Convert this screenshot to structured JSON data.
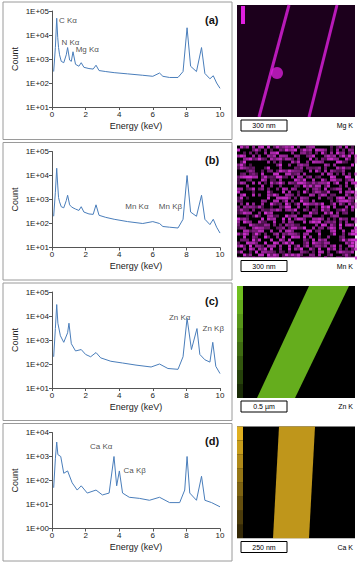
{
  "chart_data": [
    {
      "type": "line",
      "title": "(a)",
      "x_label": "Energy (keV)",
      "y_label": "Count",
      "color": "#4a7ebb",
      "log": "y",
      "grid": false,
      "xlim": [
        0,
        10
      ],
      "xticks": [
        0,
        2,
        4,
        6,
        8,
        10
      ],
      "ylim": [
        10,
        100000
      ],
      "yticks": [
        {
          "value": 10,
          "label": "1E+01"
        },
        {
          "value": 100,
          "label": "1E+02"
        },
        {
          "value": 1000,
          "label": "1E+03"
        },
        {
          "value": 10000,
          "label": "1E+04"
        },
        {
          "value": 100000,
          "label": "1E+05"
        }
      ],
      "x": [
        0.1,
        0.2,
        0.28,
        0.34,
        0.39,
        0.45,
        0.55,
        0.7,
        0.85,
        0.93,
        1.05,
        1.15,
        1.25,
        1.4,
        1.6,
        1.74,
        1.9,
        2.2,
        2.45,
        2.62,
        2.8,
        3.2,
        3.7,
        4.5,
        5.4,
        6.0,
        6.4,
        6.6,
        7.0,
        7.5,
        7.8,
        8.04,
        8.25,
        8.6,
        8.9,
        9.1,
        9.4,
        9.6,
        9.8,
        10
      ],
      "values": [
        300,
        3000,
        50000,
        8000,
        3000,
        1500,
        800,
        700,
        1500,
        3000,
        900,
        800,
        2000,
        600,
        500,
        700,
        450,
        400,
        380,
        550,
        330,
        300,
        270,
        240,
        210,
        190,
        260,
        190,
        170,
        170,
        300,
        20000,
        500,
        300,
        3000,
        250,
        150,
        200,
        100,
        60
      ],
      "annotations": [
        {
          "text": "C Kα",
          "x": 0.35,
          "y": 40000
        },
        {
          "text": "N Kα",
          "x": 0.5,
          "y": 5000
        },
        {
          "text": "Mg Kα",
          "x": 1.35,
          "y": 2500
        }
      ],
      "map": {
        "element": "Mg K",
        "scale_bar": "300 nm",
        "color": "#e020e0"
      }
    },
    {
      "type": "line",
      "title": "(b)",
      "x_label": "Energy (keV)",
      "y_label": "Count",
      "color": "#4a7ebb",
      "log": "y",
      "grid": false,
      "xlim": [
        0,
        10
      ],
      "xticks": [
        0,
        2,
        4,
        6,
        8,
        10
      ],
      "ylim": [
        10,
        100000
      ],
      "yticks": [
        {
          "value": 10,
          "label": "1E+01"
        },
        {
          "value": 100,
          "label": "1E+02"
        },
        {
          "value": 1000,
          "label": "1E+03"
        },
        {
          "value": 10000,
          "label": "1E+04"
        },
        {
          "value": 100000,
          "label": "1E+05"
        }
      ],
      "x": [
        0.1,
        0.2,
        0.28,
        0.34,
        0.39,
        0.45,
        0.55,
        0.7,
        0.85,
        0.93,
        1.05,
        1.15,
        1.25,
        1.4,
        1.6,
        1.74,
        1.9,
        2.2,
        2.45,
        2.62,
        2.8,
        3.2,
        3.7,
        4.5,
        5.4,
        6.0,
        6.4,
        6.6,
        7.0,
        7.5,
        7.8,
        8.04,
        8.25,
        8.6,
        8.9,
        9.1,
        9.4,
        9.6,
        9.8,
        10
      ],
      "values": [
        200,
        2000,
        20000,
        4000,
        1200,
        800,
        500,
        450,
        900,
        1500,
        600,
        500,
        450,
        400,
        350,
        500,
        300,
        250,
        240,
        600,
        220,
        180,
        150,
        120,
        100,
        120,
        100,
        75,
        70,
        65,
        150,
        10000,
        300,
        200,
        1500,
        150,
        90,
        150,
        70,
        40
      ],
      "annotations": [
        {
          "text": "Mn Kα",
          "x": 4.3,
          "y": 500
        },
        {
          "text": "Mn Kβ",
          "x": 6.3,
          "y": 500
        }
      ],
      "map": {
        "element": "Mn K",
        "scale_bar": "300 nm",
        "color": "#d030d0"
      }
    },
    {
      "type": "line",
      "title": "(c)",
      "x_label": "Energy (keV)",
      "y_label": "Count",
      "color": "#4a7ebb",
      "log": "y",
      "grid": false,
      "xlim": [
        0,
        10
      ],
      "xticks": [
        0,
        2,
        4,
        6,
        8,
        10
      ],
      "ylim": [
        10,
        100000
      ],
      "yticks": [
        {
          "value": 10,
          "label": "1E+01"
        },
        {
          "value": 100,
          "label": "1E+02"
        },
        {
          "value": 1000,
          "label": "1E+03"
        },
        {
          "value": 10000,
          "label": "1E+04"
        },
        {
          "value": 100000,
          "label": "1E+05"
        }
      ],
      "x": [
        0.1,
        0.2,
        0.28,
        0.35,
        0.5,
        0.7,
        0.93,
        1.01,
        1.15,
        1.4,
        1.74,
        2.0,
        2.3,
        2.62,
        2.9,
        3.5,
        4.2,
        5.0,
        5.9,
        6.4,
        6.9,
        7.5,
        7.8,
        8.04,
        8.3,
        8.63,
        8.8,
        9.1,
        9.4,
        9.57,
        9.75,
        10
      ],
      "values": [
        200,
        3000,
        30000,
        5000,
        1500,
        800,
        2000,
        5000,
        700,
        350,
        400,
        250,
        200,
        300,
        180,
        130,
        110,
        90,
        75,
        100,
        65,
        60,
        200,
        8000,
        400,
        3000,
        250,
        150,
        120,
        800,
        80,
        40
      ],
      "annotations": [
        {
          "text": "Zn Kα",
          "x": 6.9,
          "y": 9000
        },
        {
          "text": "Zn Kβ",
          "x": 8.9,
          "y": 3000
        }
      ],
      "map": {
        "element": "Zn K",
        "scale_bar": "0.5 µm",
        "color": "#70c020"
      }
    },
    {
      "type": "line",
      "title": "(d)",
      "x_label": "Energy (keV)",
      "y_label": "Count",
      "color": "#4a7ebb",
      "log": "y",
      "grid": false,
      "xlim": [
        0,
        10
      ],
      "xticks": [
        0,
        2,
        4,
        6,
        8,
        10
      ],
      "ylim": [
        1,
        10000
      ],
      "yticks": [
        {
          "value": 1,
          "label": "1E+00"
        },
        {
          "value": 10,
          "label": "1E+01"
        },
        {
          "value": 100,
          "label": "1E+02"
        },
        {
          "value": 1000,
          "label": "1E+03"
        },
        {
          "value": 10000,
          "label": "1E+04"
        }
      ],
      "x": [
        0.1,
        0.2,
        0.28,
        0.35,
        0.52,
        0.7,
        0.93,
        1.2,
        1.5,
        1.74,
        2.1,
        2.62,
        3.0,
        3.4,
        3.69,
        3.85,
        4.01,
        4.2,
        4.6,
        5.2,
        5.8,
        6.4,
        7.0,
        7.6,
        7.9,
        8.04,
        8.2,
        8.6,
        8.9,
        9.1,
        9.5,
        10
      ],
      "values": [
        50,
        800,
        4000,
        1200,
        1000,
        200,
        250,
        80,
        40,
        60,
        30,
        40,
        25,
        30,
        1000,
        60,
        250,
        30,
        20,
        18,
        15,
        20,
        12,
        12,
        40,
        1000,
        30,
        15,
        150,
        15,
        12,
        8
      ],
      "annotations": [
        {
          "text": "Ca Kα",
          "x": 2.2,
          "y": 2500
        },
        {
          "text": "Ca Kβ",
          "x": 4.2,
          "y": 250
        }
      ],
      "map": {
        "element": "Ca K",
        "scale_bar": "250 nm",
        "color": "#e0b020"
      }
    }
  ]
}
